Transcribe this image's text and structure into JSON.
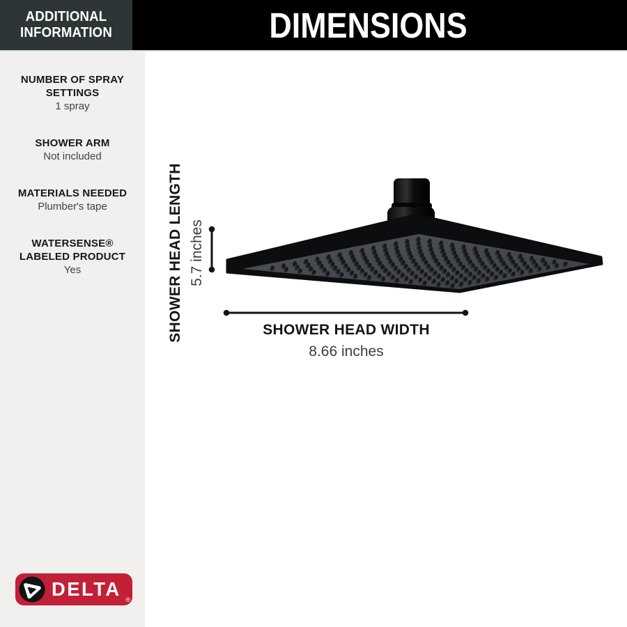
{
  "header": {
    "additional_info": "ADDITIONAL INFORMATION",
    "title": "DIMENSIONS"
  },
  "sidebar": {
    "items": [
      {
        "label": "NUMBER OF SPRAY SETTINGS",
        "value": "1 spray"
      },
      {
        "label": "SHOWER ARM",
        "value": "Not included"
      },
      {
        "label": "MATERIALS NEEDED",
        "value": "Plumber's tape"
      },
      {
        "label": "WATERSENSE® LABELED PRODUCT",
        "value": "Yes"
      }
    ],
    "logo": {
      "brand": "DELTA",
      "registered": "®"
    }
  },
  "diagram": {
    "length_label": "SHOWER HEAD LENGTH",
    "length_value": "5.7 inches",
    "width_label": "SHOWER HEAD WIDTH",
    "width_value": "8.66 inches"
  },
  "colors": {
    "delta_red": "#c22036",
    "header_black": "#000000",
    "header_charcoal": "#2e3537",
    "sidebar_bg": "#f1f0ee",
    "head_face_gray": "#45484c",
    "nozzle_dark": "#17191c"
  }
}
